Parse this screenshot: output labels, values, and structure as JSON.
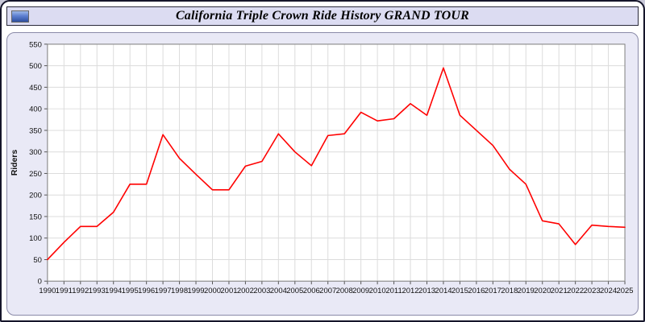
{
  "header": {
    "title": "California Triple Crown Ride History GRAND TOUR",
    "logo_icon": "blue-photo-icon"
  },
  "chart_data": {
    "type": "line",
    "title": "California Triple Crown Ride History GRAND TOUR",
    "xlabel": "",
    "ylabel": "Riders",
    "x": [
      1990,
      1991,
      1992,
      1993,
      1994,
      1995,
      1996,
      1997,
      1998,
      1999,
      2000,
      2001,
      2002,
      2003,
      2004,
      2005,
      2006,
      2007,
      2008,
      2009,
      2010,
      2011,
      2012,
      2013,
      2014,
      2015,
      2016,
      2017,
      2018,
      2019,
      2020,
      2021,
      2022,
      2023,
      2024,
      2025
    ],
    "series": [
      {
        "name": "Riders",
        "color": "#FF0000",
        "values": [
          50,
          90,
          127,
          127,
          160,
          225,
          225,
          340,
          285,
          248,
          212,
          212,
          267,
          278,
          342,
          300,
          268,
          338,
          342,
          392,
          372,
          377,
          412,
          385,
          495,
          385,
          350,
          315,
          260,
          225,
          140,
          133,
          85,
          130,
          127,
          125
        ]
      }
    ],
    "ylim": [
      0,
      550
    ],
    "ytick_step": 50,
    "grid": true,
    "legend_position": "none",
    "plot_bg": "#FFFFFF",
    "panel_bg": "#E9E9F6",
    "grid_color": "#DCDCDC",
    "axis_color": "#808080",
    "tick_text_color": "#111111"
  }
}
